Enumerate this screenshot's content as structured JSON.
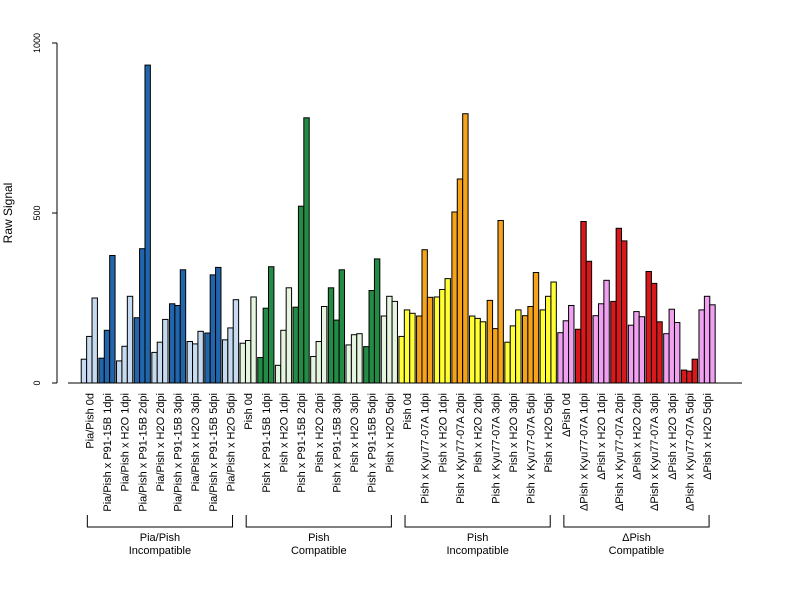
{
  "chart_data": {
    "type": "bar",
    "ylabel": "Raw Signal",
    "ylim": [
      0,
      1000
    ],
    "yticks": [
      0,
      500,
      1000
    ],
    "bars_per_group": 3,
    "categories": [
      "Pia/Pish 0d",
      "Pia/Pish x P91-15B 1dpi",
      "Pia/Pish x H2O 1dpi",
      "Pia/Pish x P91-15B 2dpi",
      "Pia/Pish x H2O 2dpi",
      "Pia/Pish x P91-15B 3dpi",
      "Pia/Pish x H2O 3dpi",
      "Pia/Pish x P91-15B 5dpi",
      "Pia/Pish x H2O 5dpi",
      "Pish 0d",
      "Pish x P91-15B 1dpi",
      "Pish x H2O 1dpi",
      "Pish x P91-15B 2dpi",
      "Pish x H2O 2dpi",
      "Pish x P91-15B 3dpi",
      "Pish x H2O 3dpi",
      "Pish x P91-15B 5dpi",
      "Pish x H2O 5dpi",
      "Pish 0d",
      "Pish x Kyu77-07A 1dpi",
      "Pish x H2O 1dpi",
      "Pish x Kyu77-07A 2dpi",
      "Pish x H2O 2dpi",
      "Pish x Kyu77-07A 3dpi",
      "Pish x H2O 3dpi",
      "Pish x Kyu77-07A 5dpi",
      "Pish x H2O 5dpi",
      "ΔPish 0d",
      "ΔPish x Kyu77-07A 1dpi",
      "ΔPish x H2O 1dpi",
      "ΔPish x Kyu77-07A 2dpi",
      "ΔPish x H2O 2dpi",
      "ΔPish x Kyu77-07A 3dpi",
      "ΔPish x H2O 3dpi",
      "ΔPish x Kyu77-07A 5dpi",
      "ΔPish x H2O 5dpi"
    ],
    "values": [
      [
        70,
        137,
        250
      ],
      [
        73,
        155,
        375
      ],
      [
        65,
        108,
        255
      ],
      [
        192,
        395,
        935
      ],
      [
        90,
        120,
        187
      ],
      [
        233,
        228,
        333
      ],
      [
        122,
        115,
        152
      ],
      [
        147,
        318,
        340
      ],
      [
        127,
        162,
        245
      ],
      [
        117,
        125,
        253
      ],
      [
        75,
        220,
        342
      ],
      [
        52,
        155,
        280
      ],
      [
        223,
        520,
        780
      ],
      [
        78,
        122,
        225
      ],
      [
        280,
        185,
        333
      ],
      [
        112,
        142,
        145
      ],
      [
        107,
        272,
        365
      ],
      [
        197,
        255,
        240
      ],
      [
        137,
        215,
        205
      ],
      [
        197,
        392,
        252
      ],
      [
        253,
        275,
        307
      ],
      [
        503,
        600,
        792
      ],
      [
        197,
        190,
        180
      ],
      [
        243,
        160,
        478
      ],
      [
        120,
        168,
        215
      ],
      [
        198,
        225,
        325
      ],
      [
        215,
        255,
        297
      ],
      [
        148,
        183,
        228
      ],
      [
        158,
        475,
        358
      ],
      [
        198,
        233,
        302
      ],
      [
        240,
        455,
        418
      ],
      [
        170,
        210,
        195
      ],
      [
        328,
        293,
        180
      ],
      [
        145,
        217,
        178
      ],
      [
        38,
        35,
        70
      ],
      [
        215,
        255,
        230
      ]
    ],
    "bar_colors": [
      "#c6dbef",
      "#2166ac",
      "#c6dbef",
      "#2166ac",
      "#c6dbef",
      "#2166ac",
      "#c6dbef",
      "#2166ac",
      "#c6dbef",
      "#e5f5e0",
      "#238b45",
      "#e5f5e0",
      "#238b45",
      "#e5f5e0",
      "#238b45",
      "#e5f5e0",
      "#238b45",
      "#e5f5e0",
      "#ffff33",
      "#f5a31a",
      "#ffff33",
      "#f5a31a",
      "#ffff33",
      "#f5a31a",
      "#ffff33",
      "#f5a31a",
      "#ffff33",
      "#f0a0f0",
      "#d7191c",
      "#f0a0f0",
      "#d7191c",
      "#f0a0f0",
      "#d7191c",
      "#f0a0f0",
      "#d7191c",
      "#f0a0f0"
    ],
    "brackets": [
      {
        "line1": "Pia/Pish",
        "line2": "Incompatible",
        "first": 0,
        "last": 8
      },
      {
        "line1": "Pish",
        "line2": "Compatible",
        "first": 9,
        "last": 17
      },
      {
        "line1": "Pish",
        "line2": "Incompatible",
        "first": 18,
        "last": 26
      },
      {
        "line1": "ΔPish",
        "line2": "Compatible",
        "first": 27,
        "last": 35
      }
    ]
  }
}
